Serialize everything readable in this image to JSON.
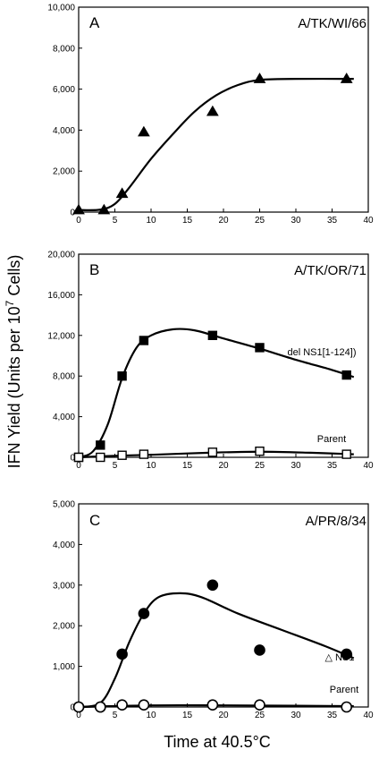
{
  "ylabel": "IFN Yield (Units per 10",
  "ylabel_sup": "7",
  "ylabel_tail": " Cells)",
  "xlabel": "Time at 40.5°C",
  "chart_data": [
    {
      "type": "scatter",
      "panel": "A",
      "strain": "A/TK/WI/66",
      "xlim": [
        0,
        40
      ],
      "ylim": [
        0,
        10000
      ],
      "xticks": [
        0,
        5,
        10,
        15,
        20,
        25,
        30,
        35,
        40
      ],
      "yticks": [
        0,
        2000,
        4000,
        6000,
        8000,
        10000
      ],
      "ytick_labels": [
        "0",
        "2,000",
        "4,000",
        "6,000",
        "8,000",
        "10,000"
      ],
      "series": [
        {
          "name": "",
          "marker": "triangle",
          "filled": true,
          "points": [
            [
              0,
              100
            ],
            [
              3.5,
              100
            ],
            [
              6,
              900
            ],
            [
              9,
              3900
            ],
            [
              18.5,
              4900
            ],
            [
              25,
              6500
            ],
            [
              37,
              6500
            ]
          ],
          "curve": [
            [
              0,
              100
            ],
            [
              3,
              120
            ],
            [
              5,
              400
            ],
            [
              7,
              1200
            ],
            [
              10,
              2600
            ],
            [
              13,
              3800
            ],
            [
              16,
              4900
            ],
            [
              19,
              5700
            ],
            [
              22,
              6200
            ],
            [
              25,
              6450
            ],
            [
              30,
              6500
            ],
            [
              38,
              6500
            ]
          ]
        }
      ]
    },
    {
      "type": "scatter",
      "panel": "B",
      "strain": "A/TK/OR/71",
      "xlim": [
        0,
        40
      ],
      "ylim": [
        0,
        20000
      ],
      "xticks": [
        0,
        5,
        10,
        15,
        20,
        25,
        30,
        35,
        40
      ],
      "yticks": [
        0,
        4000,
        8000,
        12000,
        16000,
        20000
      ],
      "ytick_labels": [
        "0",
        "4,000",
        "8,000",
        "12,000",
        "16,000",
        "20,000"
      ],
      "series": [
        {
          "name": "del NS1[1-124])",
          "marker": "square",
          "filled": true,
          "points": [
            [
              0,
              0
            ],
            [
              3,
              1200
            ],
            [
              6,
              8000
            ],
            [
              9,
              11500
            ],
            [
              18.5,
              12000
            ],
            [
              25,
              10800
            ],
            [
              37,
              8100
            ]
          ],
          "curve": [
            [
              0,
              0
            ],
            [
              2,
              600
            ],
            [
              4,
              3200
            ],
            [
              6,
              7800
            ],
            [
              8,
              10800
            ],
            [
              10,
              12000
            ],
            [
              13,
              12600
            ],
            [
              16,
              12500
            ],
            [
              20,
              11700
            ],
            [
              25,
              10700
            ],
            [
              30,
              9600
            ],
            [
              35,
              8600
            ],
            [
              38,
              7900
            ]
          ]
        },
        {
          "name": "Parent",
          "marker": "square",
          "filled": false,
          "points": [
            [
              0,
              0
            ],
            [
              3,
              0
            ],
            [
              6,
              200
            ],
            [
              9,
              300
            ],
            [
              18.5,
              500
            ],
            [
              25,
              600
            ],
            [
              37,
              300
            ]
          ],
          "curve": [
            [
              0,
              0
            ],
            [
              5,
              150
            ],
            [
              10,
              250
            ],
            [
              18,
              450
            ],
            [
              25,
              550
            ],
            [
              32,
              450
            ],
            [
              38,
              300
            ]
          ]
        }
      ]
    },
    {
      "type": "scatter",
      "panel": "C",
      "strain": "A/PR/8/34",
      "xlim": [
        0,
        40
      ],
      "ylim": [
        0,
        5000
      ],
      "xticks": [
        0,
        5,
        10,
        15,
        20,
        25,
        30,
        35,
        40
      ],
      "yticks": [
        0,
        1000,
        2000,
        3000,
        4000,
        5000
      ],
      "ytick_labels": [
        "0",
        "1,000",
        "2,000",
        "3,000",
        "4,000",
        "5,000"
      ],
      "series": [
        {
          "name": "△ NS1",
          "marker": "circle",
          "filled": true,
          "points": [
            [
              0,
              0
            ],
            [
              3,
              0
            ],
            [
              6,
              1300
            ],
            [
              9,
              2300
            ],
            [
              18.5,
              3000
            ],
            [
              25,
              1400
            ],
            [
              37,
              1300
            ]
          ],
          "curve": [
            [
              0,
              0
            ],
            [
              3,
              100
            ],
            [
              5,
              700
            ],
            [
              7,
              1600
            ],
            [
              9,
              2300
            ],
            [
              11,
              2700
            ],
            [
              14,
              2800
            ],
            [
              17,
              2700
            ],
            [
              22,
              2300
            ],
            [
              28,
              1900
            ],
            [
              34,
              1500
            ],
            [
              38,
              1200
            ]
          ]
        },
        {
          "name": "Parent",
          "marker": "circle",
          "filled": false,
          "points": [
            [
              0,
              0
            ],
            [
              3,
              0
            ],
            [
              6,
              50
            ],
            [
              9,
              50
            ],
            [
              18.5,
              50
            ],
            [
              25,
              50
            ],
            [
              37,
              0
            ]
          ],
          "curve": [
            [
              0,
              0
            ],
            [
              10,
              40
            ],
            [
              20,
              40
            ],
            [
              30,
              30
            ],
            [
              38,
              20
            ]
          ]
        }
      ]
    }
  ]
}
